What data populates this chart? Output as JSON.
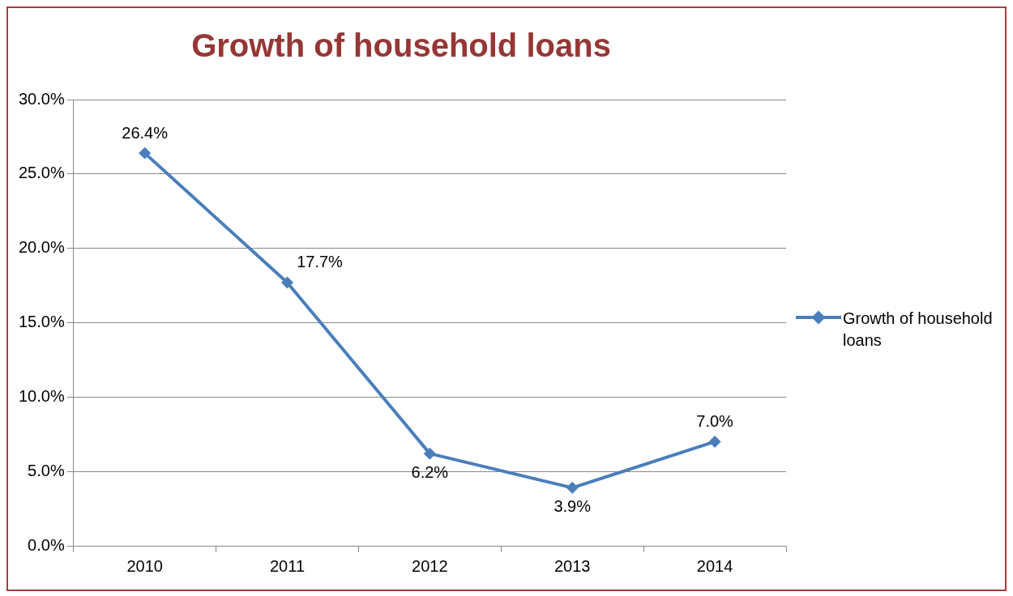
{
  "chart_data": {
    "type": "line",
    "title": "Growth of household loans",
    "categories": [
      "2010",
      "2011",
      "2012",
      "2013",
      "2014"
    ],
    "series": [
      {
        "name": "Growth of household loans",
        "color": "#4a7ebb",
        "values": [
          26.4,
          17.7,
          6.2,
          3.9,
          7.0
        ],
        "value_labels": [
          "26.4%",
          "17.7%",
          "6.2%",
          "3.9%",
          "7.0%"
        ]
      }
    ],
    "ylim": [
      0,
      30
    ],
    "yticks": [
      {
        "value": 0,
        "label": "0.0%"
      },
      {
        "value": 5,
        "label": "5.0%"
      },
      {
        "value": 10,
        "label": "10.0%"
      },
      {
        "value": 15,
        "label": "15.0%"
      },
      {
        "value": 20,
        "label": "20.0%"
      },
      {
        "value": 25,
        "label": "25.0%"
      },
      {
        "value": 30,
        "label": "30.0%"
      }
    ],
    "grid": "y",
    "legend": "right",
    "marker": "diamond",
    "line_style": "solid"
  }
}
